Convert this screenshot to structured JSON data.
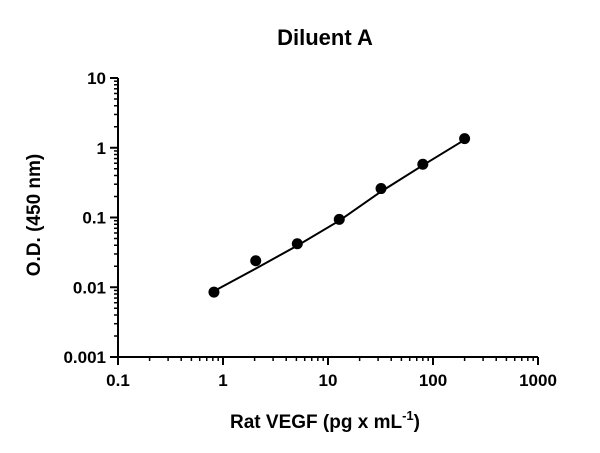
{
  "chart_data": {
    "type": "scatter",
    "title": "Diluent A",
    "xlabel": "Rat VEGF (pg x mL",
    "xlabel_superscript": "-1",
    "xlabel_suffix": ")",
    "ylabel": "O.D. (450 nm)",
    "x_scale": "log",
    "y_scale": "log",
    "xlim": [
      0.1,
      1000
    ],
    "ylim": [
      0.001,
      10
    ],
    "x_ticks": [
      {
        "value": 0.1,
        "label": "0.1"
      },
      {
        "value": 1,
        "label": "1"
      },
      {
        "value": 10,
        "label": "10"
      },
      {
        "value": 100,
        "label": "100"
      },
      {
        "value": 1000,
        "label": "1000"
      }
    ],
    "y_ticks": [
      {
        "value": 0.001,
        "label": "0.001"
      },
      {
        "value": 0.01,
        "label": "0.01"
      },
      {
        "value": 0.1,
        "label": "0.1"
      },
      {
        "value": 1,
        "label": "1"
      },
      {
        "value": 10,
        "label": "10"
      }
    ],
    "grid": false,
    "series": [
      {
        "points": [
          {
            "x": 0.82,
            "y": 0.0085
          },
          {
            "x": 2.05,
            "y": 0.024
          },
          {
            "x": 5.1,
            "y": 0.042
          },
          {
            "x": 12.8,
            "y": 0.094
          },
          {
            "x": 32,
            "y": 0.26
          },
          {
            "x": 80,
            "y": 0.58
          },
          {
            "x": 200,
            "y": 1.35
          }
        ],
        "fit_curve": [
          {
            "x": 0.82,
            "y": 0.0088
          },
          {
            "x": 2.05,
            "y": 0.0185
          },
          {
            "x": 5.1,
            "y": 0.0395
          },
          {
            "x": 12.8,
            "y": 0.09
          },
          {
            "x": 32,
            "y": 0.235
          },
          {
            "x": 80,
            "y": 0.56
          },
          {
            "x": 200,
            "y": 1.3
          }
        ]
      }
    ],
    "colors": {
      "marker": "#000000",
      "line": "#000000",
      "axis": "#000000"
    }
  }
}
